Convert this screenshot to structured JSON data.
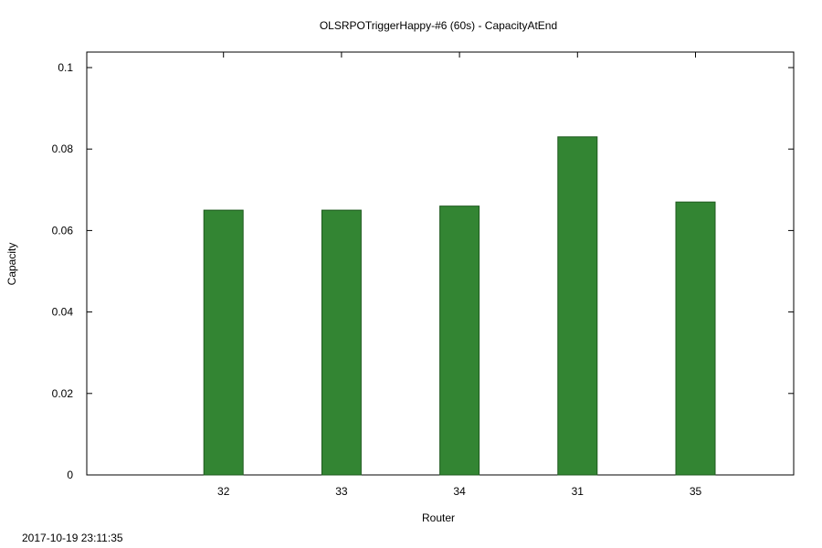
{
  "chart_data": {
    "type": "bar",
    "title": "OLSRPOTriggerHappy-#6 (60s) - CapacityAtEnd",
    "xlabel": "Router",
    "ylabel": "Capacity",
    "categories": [
      "32",
      "33",
      "34",
      "31",
      "35"
    ],
    "values": [
      0.065,
      0.065,
      0.066,
      0.083,
      0.067
    ],
    "ylim": [
      0,
      0.1
    ],
    "yticks": [
      "0",
      "0.02",
      "0.04",
      "0.06",
      "0.08",
      "0.1"
    ],
    "bar_color": "#338533",
    "grid": false,
    "legend": "none"
  },
  "footer": {
    "timestamp": "2017-10-19 23:11:35"
  }
}
